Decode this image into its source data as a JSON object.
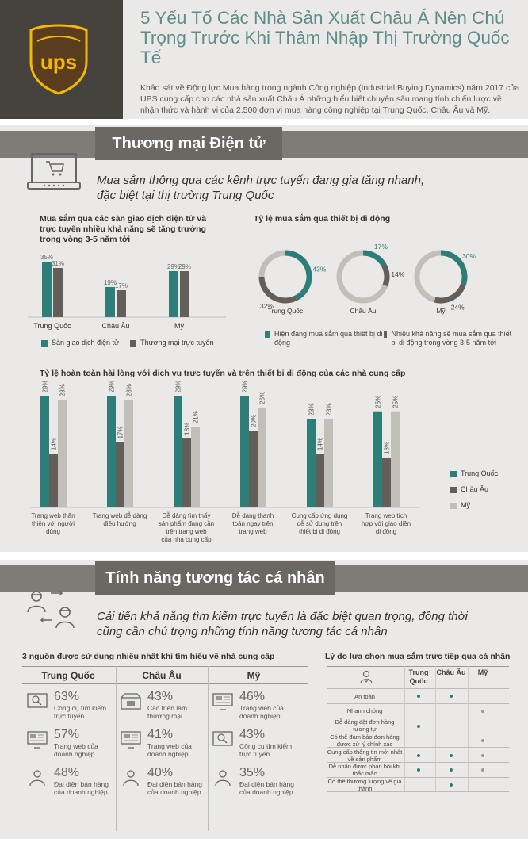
{
  "header": {
    "logo_text": "ups",
    "title": "5 Yếu Tố Các Nhà Sản Xuất Châu Á Nên Chú Trọng Trước Khi Thâm Nhập Thị Trường Quốc Tế",
    "intro": "Khảo sát về Động lực Mua hàng trong ngành Công nghiệp (Industrial Buying Dynamics) năm 2017 của UPS cung cấp cho các nhà sản xuất Châu Á những hiểu biết chuyên sâu mang tính chiến lược về nhận thức và hành vi của 2.500 đơn vị mua hàng công nghiệp tại Trung Quốc, Châu Âu và Mỹ."
  },
  "colors": {
    "teal": "#2d7e79",
    "dark": "#635e5a",
    "light": "#c2bfbb",
    "accent": "#5f8d8b",
    "gold": "#f2b807"
  },
  "section1": {
    "title": "Thương mại Điện tử",
    "lead": "Mua sắm thông qua các kênh trực tuyến đang gia tăng nhanh, đặc biệt tại thị trường Trung Quốc",
    "icon": "laptop-cart-icon"
  },
  "section2": {
    "title": "Tính năng tương tác cá nhân",
    "lead": "Cải tiến khả năng tìm kiếm trực tuyến là đặc biệt quan trọng, đồng thời cũng cần chú trọng những tính năng tương tác cá nhân",
    "icon": "people-interaction-icon"
  },
  "chart_data": [
    {
      "type": "bar",
      "title": "Mua sắm qua các sàn giao dịch điện tử và trực tuyến nhiều khả năng sẽ tăng trưởng trong vòng 3-5 năm tới",
      "categories": [
        "Trung Quốc",
        "Châu Âu",
        "Mỹ"
      ],
      "series": [
        {
          "name": "Sàn giao dịch điện tử",
          "values": [
            35,
            19,
            29
          ],
          "labels": [
            "35%",
            "19%",
            "29%"
          ]
        },
        {
          "name": "Thương mại trực tuyến",
          "values": [
            31,
            17,
            29
          ],
          "labels": [
            "31%",
            "17%",
            "29%"
          ]
        }
      ]
    },
    {
      "type": "pie",
      "title": "Tỷ lệ mua sắm qua thiết bị di động",
      "categories": [
        "Trung Quốc",
        "Châu Âu",
        "Mỹ"
      ],
      "series": [
        {
          "name": "Hiện đang mua sắm qua thiết bị di động",
          "values": [
            43,
            17,
            30
          ],
          "labels": [
            "43%",
            "17%",
            "30%"
          ]
        },
        {
          "name": "Nhiều khả năng sẽ mua sắm qua thiết bị di động trong vòng 3-5 năm tới",
          "values": [
            32,
            14,
            24
          ],
          "labels": [
            "32%",
            "14%",
            "24%"
          ]
        }
      ]
    },
    {
      "type": "bar",
      "title": "Tỷ lệ hoàn toàn hài lòng với dịch vụ trực tuyến và trên thiết bị di động của các nhà cung cấp",
      "categories": [
        "Trang web thân thiện với người dùng",
        "Trang web dễ dàng điều hướng",
        "Dễ dàng tìm thấy sản phẩm đang cần trên trang web của nhà cung cấp",
        "Dễ dàng thanh toán ngay trên trang web",
        "Cung cấp ứng dụng dễ sử dụng trên thiết bị di động",
        "Trang web tích hợp với giao diện di động"
      ],
      "series": [
        {
          "name": "Trung Quốc",
          "values": [
            29,
            29,
            29,
            29,
            23,
            25
          ],
          "labels": [
            "29%",
            "29%",
            "29%",
            "29%",
            "23%",
            "25%"
          ]
        },
        {
          "name": "Châu Âu",
          "values": [
            14,
            17,
            18,
            20,
            14,
            13
          ],
          "labels": [
            "14%",
            "17%",
            "18%",
            "20%",
            "14%",
            "13%"
          ]
        },
        {
          "name": "Mỹ",
          "values": [
            28,
            28,
            21,
            26,
            23,
            25
          ],
          "labels": [
            "28%",
            "28%",
            "21%",
            "26%",
            "23%",
            "25%"
          ]
        }
      ],
      "ylim": [
        0,
        30
      ]
    },
    {
      "type": "table",
      "title": "3 nguồn được sử dụng nhiều nhất khi tìm hiểu về nhà cung cấp",
      "columns": [
        {
          "region": "Trung Quốc",
          "items": [
            {
              "pct": "63%",
              "desc": "Công cụ tìm kiếm trực tuyến",
              "icon": "search-icon"
            },
            {
              "pct": "57%",
              "desc": "Trang web của doanh nghiệp",
              "icon": "monitor-icon"
            },
            {
              "pct": "48%",
              "desc": "Đại diện bán hàng của doanh nghiệp",
              "icon": "person-icon"
            }
          ]
        },
        {
          "region": "Châu Âu",
          "items": [
            {
              "pct": "43%",
              "desc": "Các triển lãm thương mại",
              "icon": "exhibition-icon"
            },
            {
              "pct": "41%",
              "desc": "Trang web của doanh nghiệp",
              "icon": "monitor-icon"
            },
            {
              "pct": "40%",
              "desc": "Đại diện bán hàng của doanh nghiệp",
              "icon": "person-icon"
            }
          ]
        },
        {
          "region": "Mỹ",
          "items": [
            {
              "pct": "46%",
              "desc": "Trang web của doanh nghiệp",
              "icon": "monitor-icon"
            },
            {
              "pct": "43%",
              "desc": "Công cụ tìm kiếm trực tuyến",
              "icon": "search-icon"
            },
            {
              "pct": "35%",
              "desc": "Đại diện bán hàng của doanh nghiệp",
              "icon": "person-icon"
            }
          ]
        }
      ]
    },
    {
      "type": "table",
      "title": "Lý do lựa chọn mua sắm trực tiếp qua cá nhân",
      "headers": [
        "Trung Quốc",
        "Châu Âu",
        "Mỹ"
      ],
      "rows": [
        {
          "label": "An toàn",
          "marks": [
            true,
            true,
            false
          ]
        },
        {
          "label": "Nhanh chóng",
          "marks": [
            false,
            false,
            true
          ]
        },
        {
          "label": "Dễ dàng đặt đơn hàng tương tự",
          "marks": [
            true,
            false,
            false
          ]
        },
        {
          "label": "Có thể đàm bảo đơn hàng được xử lý chính xác",
          "marks": [
            false,
            false,
            true
          ]
        },
        {
          "label": "Cung cấp thông tin mới nhất về sản phẩm",
          "marks": [
            true,
            true,
            true
          ]
        },
        {
          "label": "Dễ nhận được phản hồi khi thắc mắc",
          "marks": [
            true,
            true,
            true
          ]
        },
        {
          "label": "Có thể thương lượng về giá thành",
          "marks": [
            false,
            true,
            false
          ]
        }
      ]
    }
  ]
}
